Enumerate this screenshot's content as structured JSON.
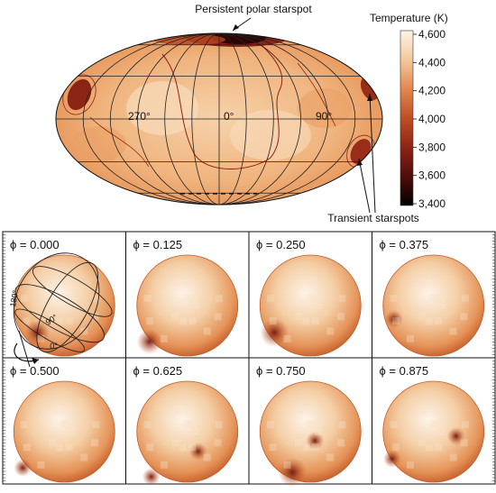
{
  "top_annotation": "Persistent polar starspot",
  "bottom_annotation": "Transient starspots",
  "map_longitude_labels": [
    "270°",
    "0°",
    "90°"
  ],
  "colorbar": {
    "title": "Temperature (K)",
    "ticks": [
      "4,600",
      "4,400",
      "4,200",
      "4,000",
      "3,800",
      "3,600",
      "3,400"
    ],
    "colors": [
      "#fdf3e7",
      "#f4c89b",
      "#e2894e",
      "#be4f24",
      "#8c2415",
      "#4f0e0c",
      "#000000"
    ]
  },
  "phase_panels": [
    {
      "label": "ϕ = 0.000"
    },
    {
      "label": "ϕ = 0.125"
    },
    {
      "label": "ϕ = 0.250"
    },
    {
      "label": "ϕ = 0.375"
    },
    {
      "label": "ϕ = 0.500"
    },
    {
      "label": "ϕ = 0.625"
    },
    {
      "label": "ϕ = 0.750"
    },
    {
      "label": "ϕ = 0.875"
    }
  ],
  "sphere_grid_labels": [
    "180°",
    "90°",
    "0°"
  ]
}
